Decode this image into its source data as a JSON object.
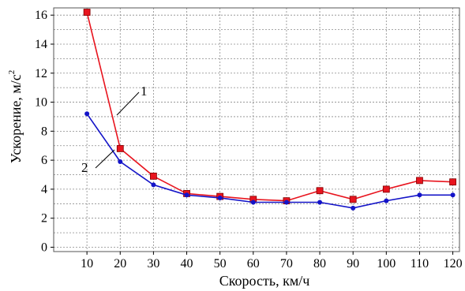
{
  "chart_data": {
    "type": "line",
    "x": [
      10,
      20,
      30,
      40,
      50,
      60,
      70,
      80,
      90,
      100,
      110,
      120
    ],
    "series": [
      {
        "name": "1",
        "color": "#e8141e",
        "marker": "square",
        "values": [
          16.2,
          6.8,
          4.9,
          3.7,
          3.5,
          3.3,
          3.2,
          3.9,
          3.3,
          4.0,
          4.6,
          4.5
        ]
      },
      {
        "name": "2",
        "color": "#1414c8",
        "marker": "circle",
        "values": [
          9.2,
          5.9,
          4.3,
          3.6,
          3.4,
          3.1,
          3.1,
          3.1,
          2.7,
          3.2,
          3.6,
          3.6
        ]
      }
    ],
    "xticks": [
      "10",
      "20",
      "30",
      "40",
      "50",
      "60",
      "70",
      "80",
      "90",
      "100",
      "110",
      "120"
    ],
    "yticks": [
      "0",
      "2",
      "4",
      "6",
      "8",
      "10",
      "12",
      "14",
      "16"
    ],
    "xlabel": "Скорость, км/ч",
    "ylabel": "Ускорение, м/с",
    "ylabel_superscript": "2",
    "xlim": [
      0,
      122
    ],
    "ylim": [
      -0.3,
      16.5
    ],
    "grid": true,
    "annotations": [
      "1",
      "2"
    ]
  }
}
